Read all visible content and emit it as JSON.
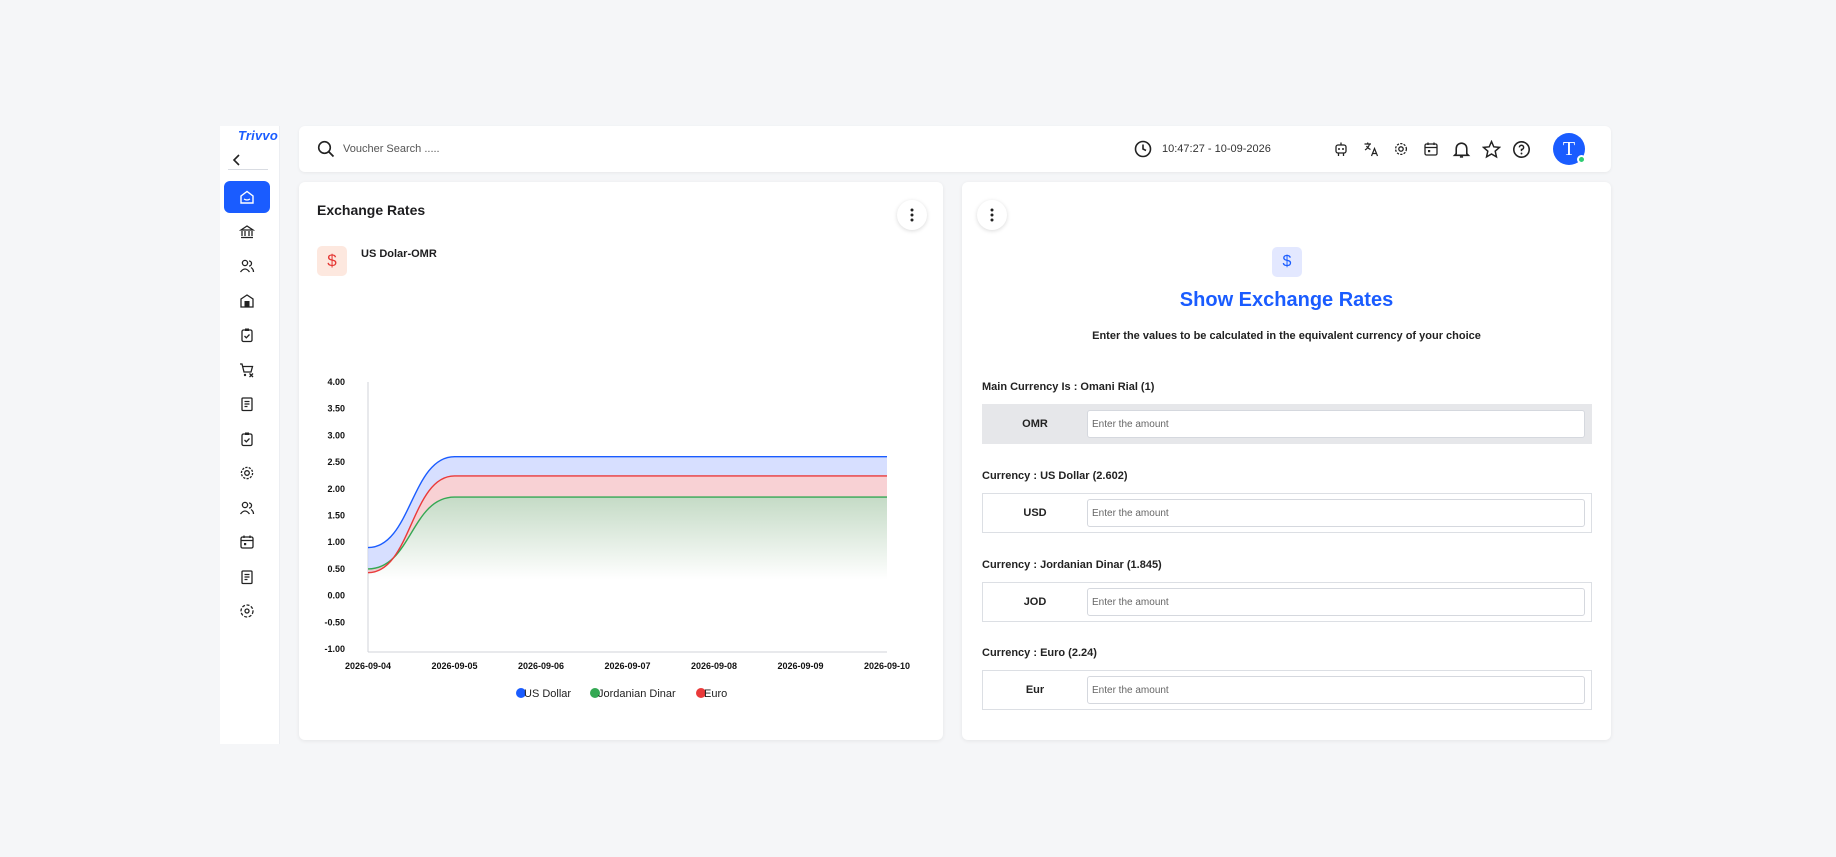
{
  "brand": "Trivvo",
  "sidebar": {
    "items": [
      {
        "icon": "home-icon",
        "active": true
      },
      {
        "icon": "bank-icon"
      },
      {
        "icon": "users-icon"
      },
      {
        "icon": "warehouse-icon"
      },
      {
        "icon": "clipboard-check-icon"
      },
      {
        "icon": "cart-remove-icon"
      },
      {
        "icon": "receipt-icon"
      },
      {
        "icon": "clipboard-check-icon"
      },
      {
        "icon": "gear-icon"
      },
      {
        "icon": "users-icon"
      },
      {
        "icon": "calendar-icon"
      },
      {
        "icon": "receipt-icon"
      },
      {
        "icon": "settings-circle-icon"
      }
    ]
  },
  "header": {
    "search_placeholder": "Voucher Search .....",
    "datetime": "10:47:27 - 10-09-2026",
    "icons": [
      "robot-icon",
      "translate-icon",
      "gear-icon",
      "calendar-icon",
      "bell-icon",
      "star-icon",
      "help-icon"
    ],
    "avatar_letter": "T"
  },
  "left_card": {
    "title": "Exchange Rates",
    "subtitle": "US Dolar-OMR",
    "currency_symbol": "$"
  },
  "chart_data": {
    "type": "area",
    "title": "",
    "x": [
      "2026-09-04",
      "2026-09-05",
      "2026-09-06",
      "2026-09-07",
      "2026-09-08",
      "2026-09-09",
      "2026-09-10"
    ],
    "y_ticks": [
      "4.00",
      "3.50",
      "3.00",
      "2.50",
      "2.00",
      "1.50",
      "1.00",
      "0.50",
      "0.00",
      "-0.50",
      "-1.00"
    ],
    "ylim": [
      -1,
      4
    ],
    "series": [
      {
        "name": "US Dollar",
        "color": "#1a5cff",
        "values": [
          0.9,
          2.602,
          2.602,
          2.602,
          2.602,
          2.602,
          2.602
        ]
      },
      {
        "name": "Jordanian Dinar",
        "color": "#34a853",
        "values": [
          0.5,
          1.845,
          1.845,
          1.845,
          1.845,
          1.845,
          1.845
        ]
      },
      {
        "name": "Euro",
        "color": "#ea3a3a",
        "values": [
          0.43,
          2.24,
          2.24,
          2.24,
          2.24,
          2.24,
          2.24
        ]
      }
    ],
    "legend": "bottom"
  },
  "right_card": {
    "currency_symbol": "$",
    "title": "Show Exchange Rates",
    "subtitle": "Enter the values to be calculated in the equivalent currency of your choice",
    "main_label": "Main Currency Is : Omani Rial (1)",
    "rows": [
      {
        "label": "Main Currency Is : Omani Rial (1)",
        "code": "OMR",
        "placeholder": "Enter the amount"
      },
      {
        "label": "Currency : US Dollar (2.602)",
        "code": "USD",
        "placeholder": "Enter the amount"
      },
      {
        "label": "Currency : Jordanian Dinar (1.845)",
        "code": "JOD",
        "placeholder": "Enter the amount"
      },
      {
        "label": "Currency : Euro (2.24)",
        "code": "Eur",
        "placeholder": "Enter the amount"
      }
    ]
  }
}
